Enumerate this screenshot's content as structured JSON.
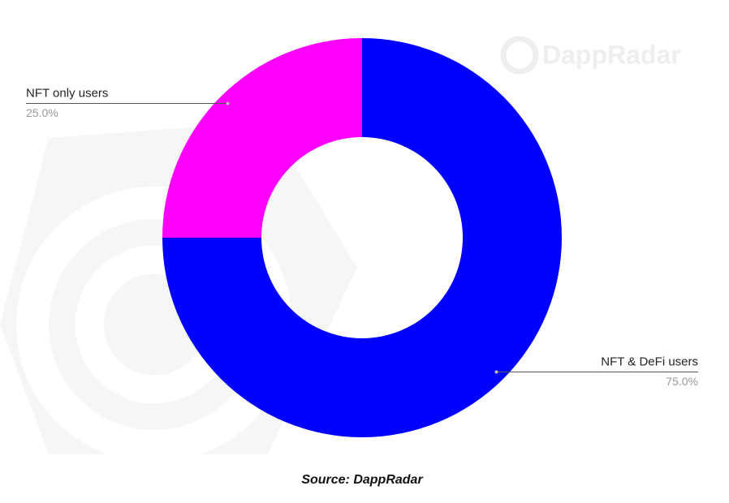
{
  "chart_data": {
    "type": "donut",
    "categories": [
      "NFT & DeFi users",
      "NFT only users"
    ],
    "values": [
      75,
      25
    ],
    "value_labels": [
      "75.0%",
      "25.0%"
    ],
    "colors": [
      "#0000ff",
      "#ff00ff"
    ],
    "watermark": "DappRadar",
    "source": "Source: DappRadar"
  }
}
